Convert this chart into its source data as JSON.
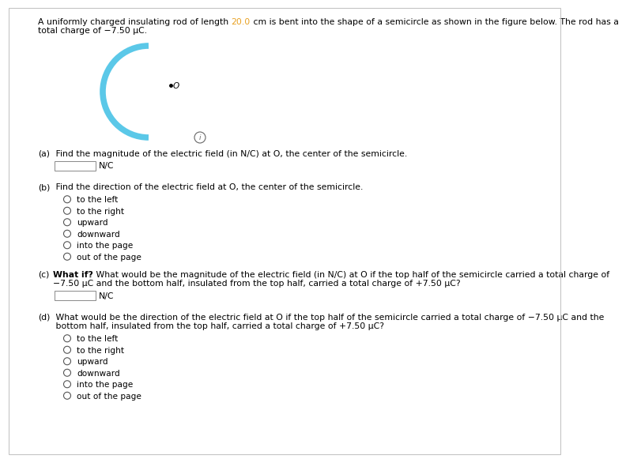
{
  "highlight_color": "#e8a020",
  "title_color": "#000000",
  "background_color": "#ffffff",
  "semicircle_color": "#5bc8e8",
  "semicircle_linewidth": 5.5,
  "font_size_title": 7.8,
  "font_size_qa": 7.8,
  "font_size_options": 7.6,
  "title_part1": "A uniformly charged insulating rod of length ",
  "title_highlight": "20.0",
  "title_part2": " cm is bent into the shape of a semicircle as shown in the figure below. The rod has a",
  "title_line2": "total charge of −7.50 μC.",
  "qa_items": [
    {
      "label": "(a)",
      "bold_prefix": "",
      "text_lines": [
        " Find the magnitude of the electric field (in N/C) at O, the center of the semicircle."
      ],
      "has_input_box": true,
      "input_label": "N/C",
      "options": []
    },
    {
      "label": "(b)",
      "bold_prefix": "",
      "text_lines": [
        " Find the direction of the electric field at O, the center of the semicircle."
      ],
      "has_input_box": false,
      "input_label": "",
      "options": [
        "to the left",
        "to the right",
        "upward",
        "downward",
        "into the page",
        "out of the page"
      ]
    },
    {
      "label": "(c)",
      "bold_prefix": "What if?",
      "text_lines": [
        " What would be the magnitude of the electric field (in N/C) at O if the top half of the semicircle carried a total charge of",
        "−7.50 μC and the bottom half, insulated from the top half, carried a total charge of +7.50 μC?"
      ],
      "has_input_box": true,
      "input_label": "N/C",
      "options": []
    },
    {
      "label": "(d)",
      "bold_prefix": "",
      "text_lines": [
        " What would be the direction of the electric field at O if the top half of the semicircle carried a total charge of −7.50 μC and the",
        " bottom half, insulated from the top half, carried a total charge of +7.50 μC?"
      ],
      "has_input_box": false,
      "input_label": "",
      "options": [
        "to the left",
        "to the right",
        "upward",
        "downward",
        "into the page",
        "out of the page"
      ]
    }
  ]
}
